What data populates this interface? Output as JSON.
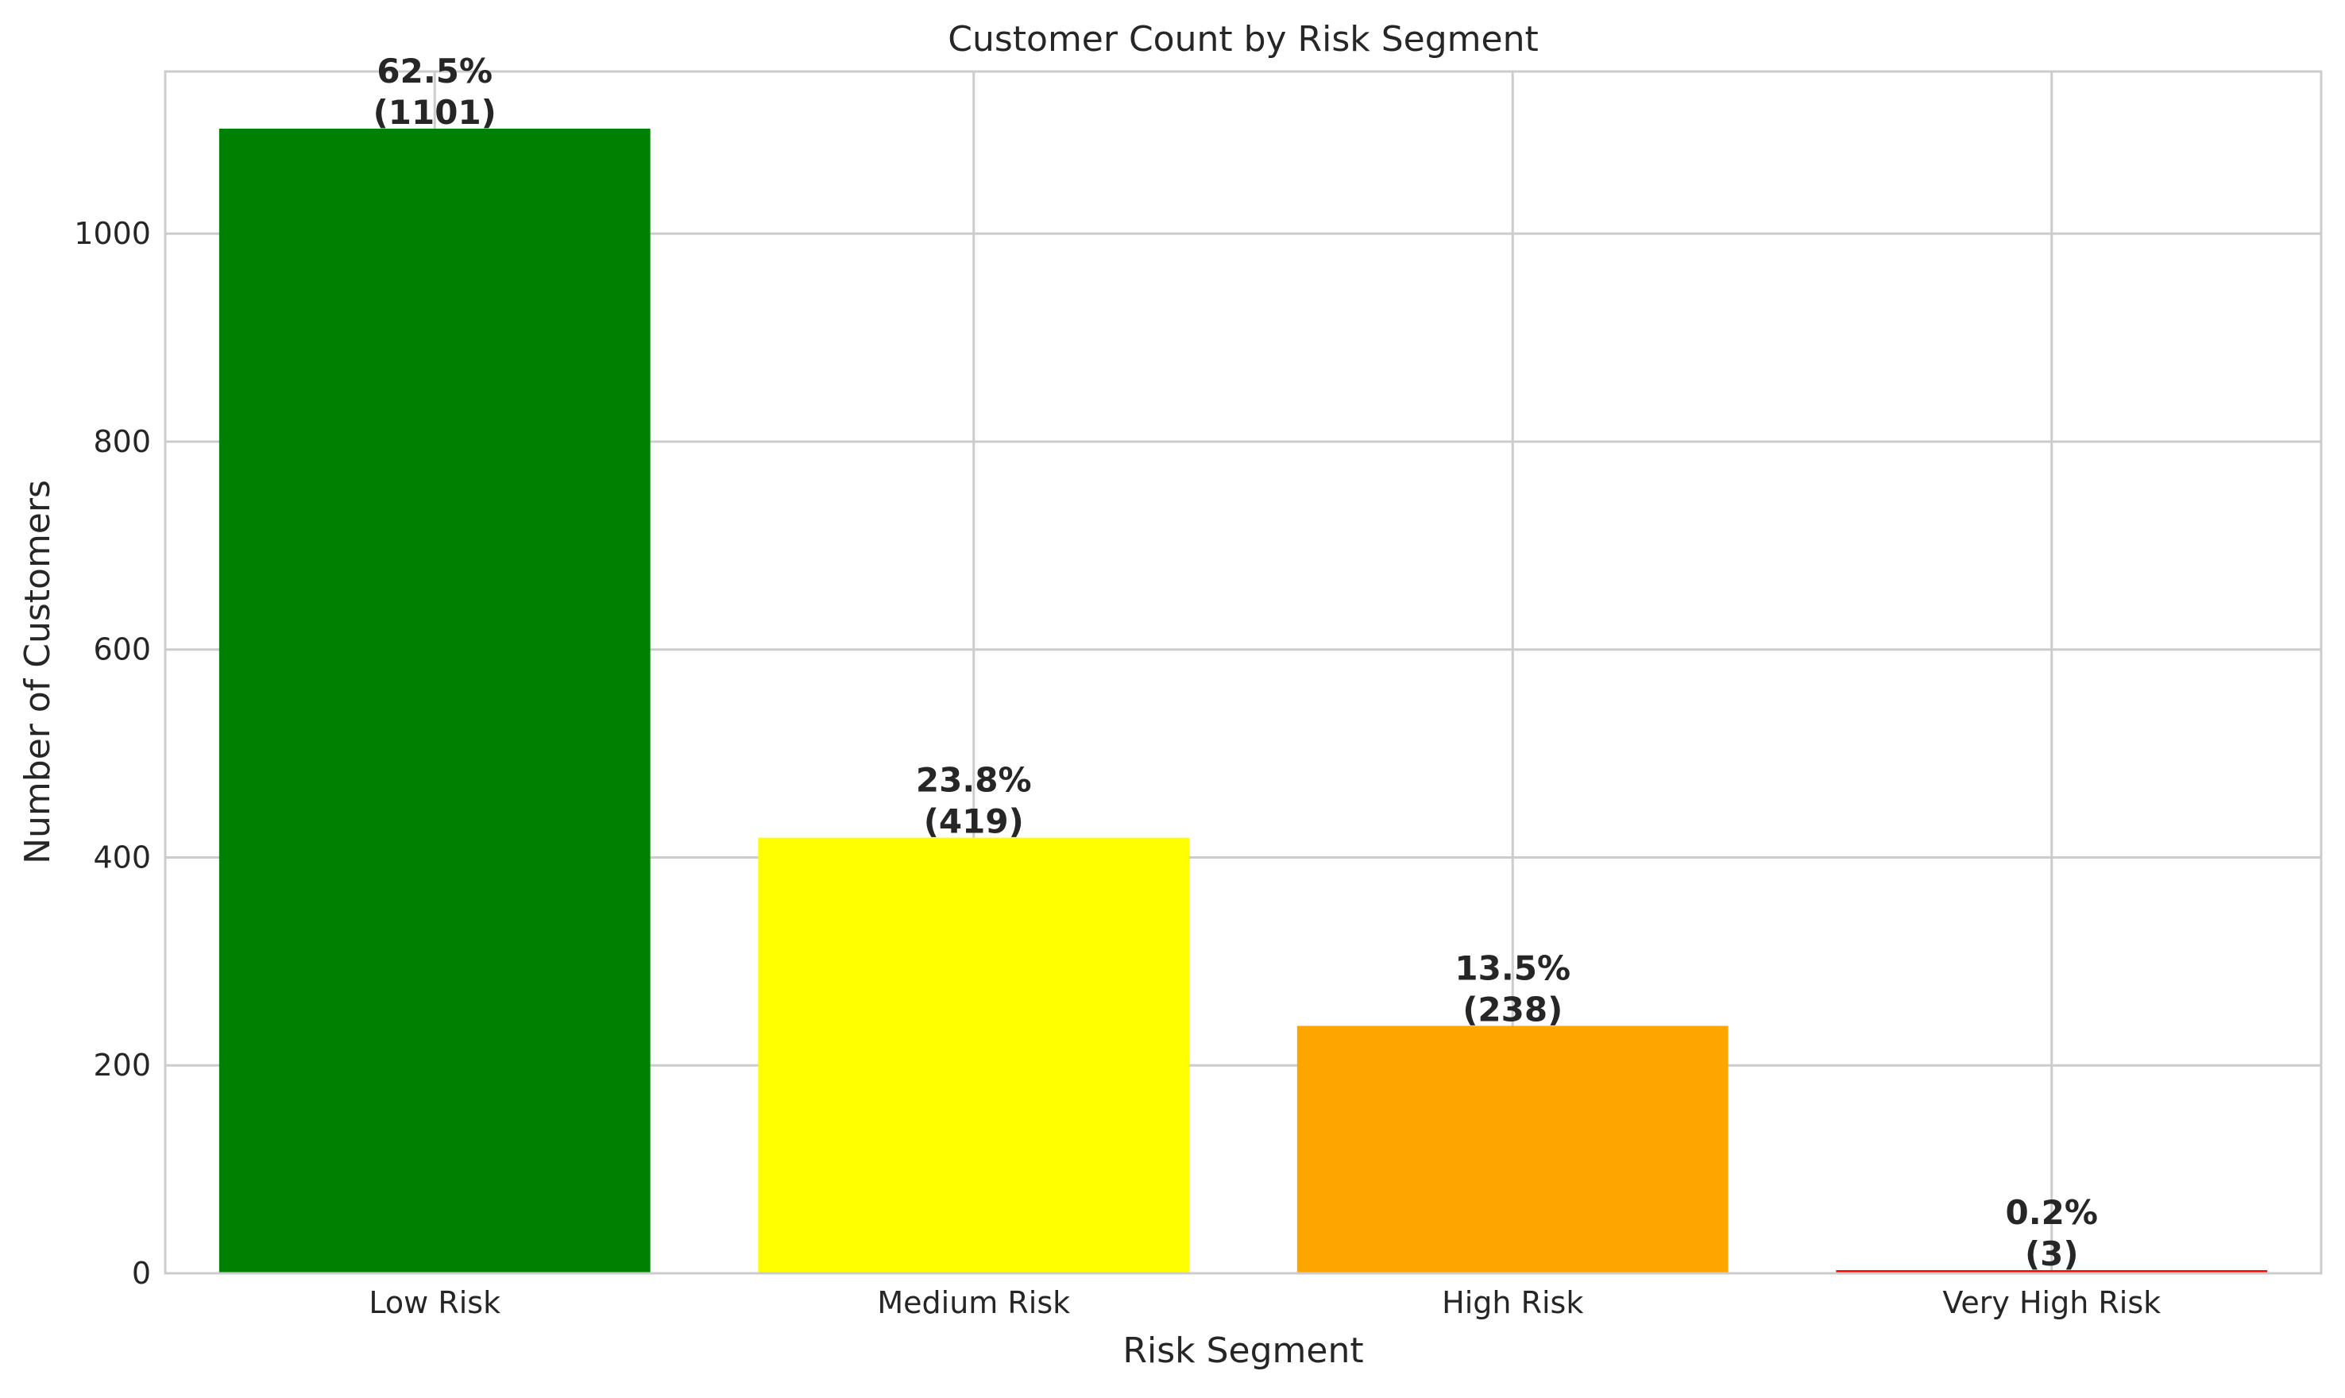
{
  "chart_data": {
    "type": "bar",
    "title": "Customer Count by Risk Segment",
    "xlabel": "Risk Segment",
    "ylabel": "Number of Customers",
    "categories": [
      "Low Risk",
      "Medium Risk",
      "High Risk",
      "Very High Risk"
    ],
    "values": [
      1101,
      419,
      238,
      3
    ],
    "percent_labels": [
      "62.5%",
      "23.8%",
      "13.5%",
      "0.2%"
    ],
    "count_labels": [
      "(1101)",
      "(419)",
      "(238)",
      "(3)"
    ],
    "colors": [
      "#008000",
      "#ffff00",
      "#ffa500",
      "#ff0000"
    ],
    "yticks": [
      0,
      200,
      400,
      600,
      800,
      1000
    ],
    "ylim": [
      0,
      1156
    ],
    "grid": true,
    "legend": "none"
  }
}
